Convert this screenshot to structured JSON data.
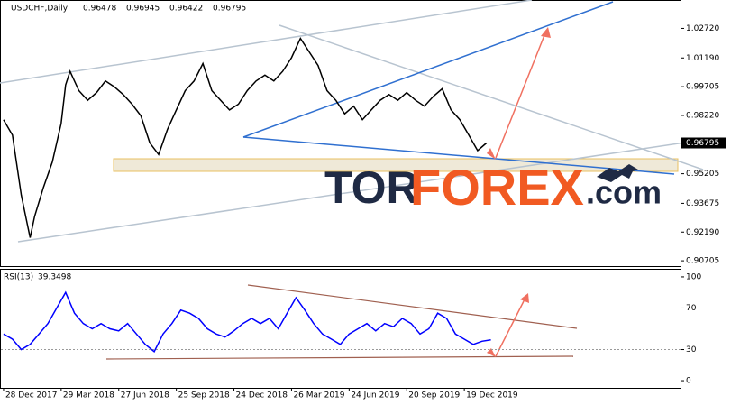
{
  "chart_data": [
    {
      "type": "line",
      "title": "USDCHF,Daily",
      "ohlc": [
        "0.96478",
        "0.96945",
        "0.96422",
        "0.96795"
      ],
      "watermark": [
        "TOR",
        "FOREX",
        ".com"
      ],
      "xlim": [
        -0.6,
        152.8
      ],
      "xticks": [
        {
          "value": 0,
          "label": "28 Dec 2017"
        },
        {
          "value": 13,
          "label": "29 Mar 2018"
        },
        {
          "value": 26,
          "label": "27 Jun 2018"
        },
        {
          "value": 39,
          "label": "25 Sep 2018"
        },
        {
          "value": 52,
          "label": "24 Dec 2018"
        },
        {
          "value": 65,
          "label": "26 Mar 2019"
        },
        {
          "value": 78,
          "label": "24 Jun 2019"
        },
        {
          "value": 91,
          "label": "20 Sep 2019"
        },
        {
          "value": 104,
          "label": "19 Dec 2019"
        }
      ],
      "ylim": [
        0.9043,
        1.0414
      ],
      "yticks": [
        {
          "value": 1.0272,
          "label": "1.02720"
        },
        {
          "value": 1.0119,
          "label": "1.01190"
        },
        {
          "value": 0.99705,
          "label": "0.99705"
        },
        {
          "value": 0.9822,
          "label": "0.98220"
        },
        {
          "value": 0.95205,
          "label": "0.95205"
        },
        {
          "value": 0.93675,
          "label": "0.93675"
        },
        {
          "value": 0.9219,
          "label": "0.92190"
        },
        {
          "value": 0.90705,
          "label": "0.90705"
        }
      ],
      "current": {
        "value": 0.96795,
        "label": "0.96795"
      },
      "series": [
        {
          "color": "#000000",
          "x": [
            0,
            2,
            4,
            6,
            7,
            9,
            11,
            13,
            14,
            15,
            17,
            19,
            21,
            23,
            25,
            27,
            29,
            31,
            33,
            35,
            37,
            39,
            41,
            43,
            45,
            47,
            49,
            51,
            53,
            55,
            57,
            59,
            61,
            63,
            65,
            67,
            69,
            71,
            73,
            75,
            77,
            79,
            81,
            83,
            85,
            87,
            89,
            91,
            93,
            95,
            97,
            99,
            101,
            103,
            105,
            107,
            109
          ],
          "values": [
            0.98,
            0.972,
            0.941,
            0.919,
            0.93,
            0.945,
            0.958,
            0.978,
            0.998,
            1.005,
            0.995,
            0.99,
            0.994,
            1.0,
            0.997,
            0.993,
            0.988,
            0.982,
            0.968,
            0.962,
            0.975,
            0.985,
            0.995,
            1.0,
            1.009,
            0.995,
            0.99,
            0.985,
            0.988,
            0.995,
            1.0,
            1.003,
            1.0,
            1.005,
            1.012,
            1.022,
            1.015,
            1.008,
            0.995,
            0.99,
            0.983,
            0.987,
            0.98,
            0.985,
            0.99,
            0.993,
            0.99,
            0.994,
            0.99,
            0.987,
            0.992,
            0.996,
            0.985,
            0.98,
            0.972,
            0.964,
            0.96795
          ]
        }
      ]
    },
    {
      "type": "line",
      "title": "RSI(13)",
      "last": "39.3498",
      "xlim": [
        -0.6,
        152.8
      ],
      "ylim": [
        -6.9,
        106.9
      ],
      "yticks": [
        100,
        70,
        30,
        0
      ],
      "series": [
        {
          "color": "#0000ff",
          "x": [
            0,
            2,
            4,
            6,
            8,
            10,
            12,
            14,
            16,
            18,
            20,
            22,
            24,
            26,
            28,
            30,
            32,
            34,
            36,
            38,
            40,
            42,
            44,
            46,
            48,
            50,
            52,
            54,
            56,
            58,
            60,
            62,
            64,
            66,
            68,
            70,
            72,
            74,
            76,
            78,
            80,
            82,
            84,
            86,
            88,
            90,
            92,
            94,
            96,
            98,
            100,
            102,
            104,
            106,
            108,
            110
          ],
          "values": [
            45,
            40,
            30,
            35,
            45,
            55,
            70,
            85,
            65,
            55,
            50,
            55,
            50,
            48,
            55,
            45,
            35,
            28,
            45,
            55,
            68,
            65,
            60,
            50,
            45,
            42,
            48,
            55,
            60,
            55,
            60,
            50,
            65,
            80,
            68,
            55,
            45,
            40,
            35,
            45,
            50,
            55,
            48,
            55,
            52,
            60,
            55,
            45,
            50,
            65,
            60,
            45,
            40,
            35,
            38,
            39.3
          ]
        }
      ]
    }
  ]
}
